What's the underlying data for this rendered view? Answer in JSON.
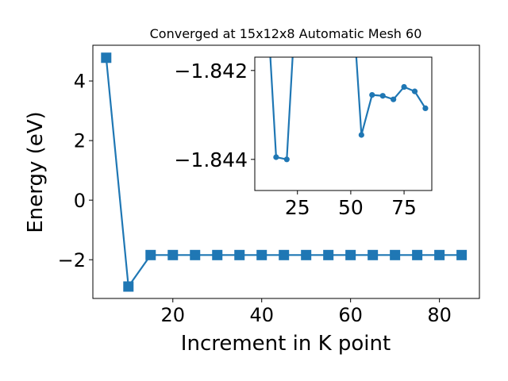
{
  "chart_data": [
    {
      "type": "line",
      "title": "Converged at 15x12x8 Automatic Mesh 60",
      "xlabel": "Increment in K point",
      "ylabel": "Energy (eV)",
      "xlim": [
        2,
        89
      ],
      "ylim": [
        -3.3,
        5.2
      ],
      "xticks": [
        20,
        40,
        60,
        80
      ],
      "yticks": [
        4,
        2,
        0,
        -2
      ],
      "ytick_labels": [
        "4",
        "2",
        "0",
        "−2"
      ],
      "grid": false,
      "marker": "square",
      "color": "#1f77b4",
      "x": [
        5,
        10,
        15,
        20,
        25,
        30,
        35,
        40,
        45,
        50,
        55,
        60,
        65,
        70,
        75,
        80,
        85
      ],
      "y": [
        4.78,
        -2.9,
        -1.843,
        -1.843,
        -1.843,
        -1.843,
        -1.843,
        -1.843,
        -1.843,
        -1.843,
        -1.843,
        -1.843,
        -1.843,
        -1.843,
        -1.843,
        -1.843,
        -1.843
      ]
    },
    {
      "type": "line",
      "title": "",
      "xlabel": "",
      "ylabel": "",
      "xlim": [
        5,
        88
      ],
      "ylim": [
        -1.8447,
        -1.8417
      ],
      "xticks": [
        25,
        50,
        75
      ],
      "yticks": [
        -1.844,
        -1.842
      ],
      "ytick_labels": [
        "−1.844",
        "−1.842"
      ],
      "grid": false,
      "marker": "circle",
      "color": "#1f77b4",
      "x": [
        10,
        15,
        20,
        25,
        50,
        55,
        60,
        65,
        70,
        75,
        80,
        85
      ],
      "y": [
        -1.8398,
        -1.84395,
        -1.844,
        -1.8398,
        -1.8398,
        -1.84345,
        -1.84255,
        -1.84257,
        -1.84265,
        -1.84237,
        -1.84247,
        -1.84285
      ]
    }
  ]
}
